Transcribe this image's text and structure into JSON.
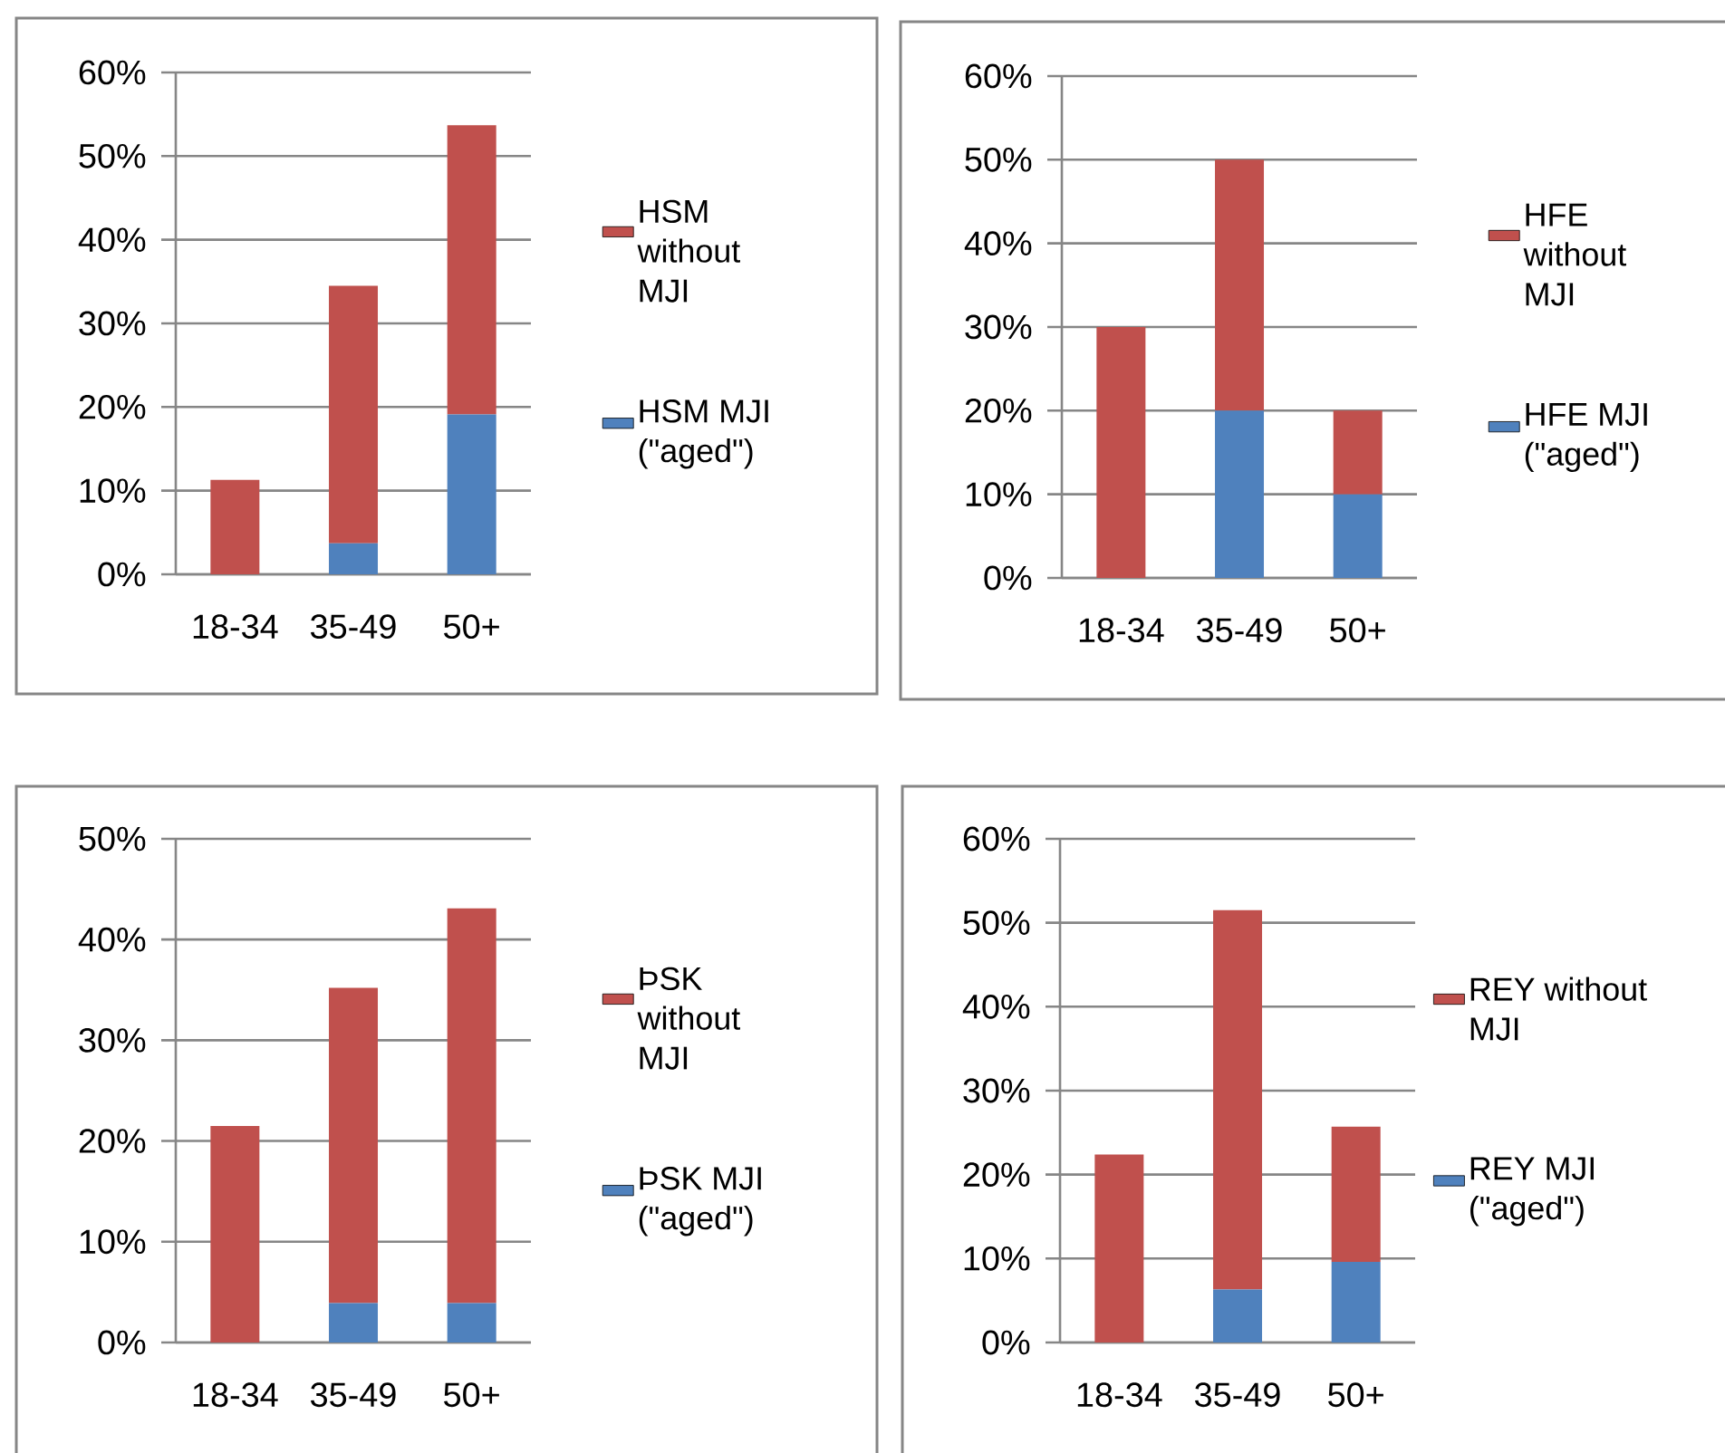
{
  "chart_data": [
    {
      "type": "bar",
      "stacked": true,
      "categories": [
        "18-34",
        "35-49",
        "50+"
      ],
      "series": [
        {
          "name": "HSM MJI (\"aged\")",
          "color": "#4f81bd",
          "values": [
            0,
            3.7,
            19.1
          ]
        },
        {
          "name": "HSM without MJI",
          "color": "#c0504d",
          "values": [
            11.3,
            30.8,
            34.6
          ]
        }
      ],
      "ylim": [
        0,
        60
      ],
      "yticks": [
        {
          "value": 0,
          "label": "0%"
        },
        {
          "value": 10,
          "label": "10%"
        },
        {
          "value": 20,
          "label": "20%"
        },
        {
          "value": 30,
          "label": "30%"
        },
        {
          "value": 40,
          "label": "40%"
        },
        {
          "value": 50,
          "label": "50%"
        },
        {
          "value": 60,
          "label": "60%"
        }
      ],
      "grid": "y",
      "legend": "right"
    },
    {
      "type": "bar",
      "stacked": true,
      "categories": [
        "18-34",
        "35-49",
        "50+"
      ],
      "series": [
        {
          "name": "HFE MJI (\"aged\")",
          "color": "#4f81bd",
          "values": [
            0,
            20,
            10
          ]
        },
        {
          "name": "HFE without MJI",
          "color": "#c0504d",
          "values": [
            30,
            30,
            10
          ]
        }
      ],
      "ylim": [
        0,
        60
      ],
      "yticks": [
        {
          "value": 0,
          "label": "0%"
        },
        {
          "value": 10,
          "label": "10%"
        },
        {
          "value": 20,
          "label": "20%"
        },
        {
          "value": 30,
          "label": "30%"
        },
        {
          "value": 40,
          "label": "40%"
        },
        {
          "value": 50,
          "label": "50%"
        },
        {
          "value": 60,
          "label": "60%"
        }
      ],
      "grid": "y",
      "legend": "right"
    },
    {
      "type": "bar",
      "stacked": true,
      "categories": [
        "18-34",
        "35-49",
        "50+"
      ],
      "series": [
        {
          "name": "ÞSK MJI (\"aged\")",
          "color": "#4f81bd",
          "values": [
            0,
            3.9,
            3.9
          ]
        },
        {
          "name": "ÞSK without MJI",
          "color": "#c0504d",
          "values": [
            21.5,
            31.3,
            39.2
          ]
        }
      ],
      "ylim": [
        0,
        50
      ],
      "yticks": [
        {
          "value": 0,
          "label": "0%"
        },
        {
          "value": 10,
          "label": "10%"
        },
        {
          "value": 20,
          "label": "20%"
        },
        {
          "value": 30,
          "label": "30%"
        },
        {
          "value": 40,
          "label": "40%"
        },
        {
          "value": 50,
          "label": "50%"
        }
      ],
      "grid": "y",
      "legend": "right"
    },
    {
      "type": "bar",
      "stacked": true,
      "categories": [
        "18-34",
        "35-49",
        "50+"
      ],
      "series": [
        {
          "name": "REY MJI (\"aged\")",
          "color": "#4f81bd",
          "values": [
            0,
            6.3,
            9.6
          ]
        },
        {
          "name": "REY without MJI",
          "color": "#c0504d",
          "values": [
            22.4,
            45.2,
            16.1
          ]
        }
      ],
      "ylim": [
        0,
        60
      ],
      "yticks": [
        {
          "value": 0,
          "label": "0%"
        },
        {
          "value": 10,
          "label": "10%"
        },
        {
          "value": 20,
          "label": "20%"
        },
        {
          "value": 30,
          "label": "30%"
        },
        {
          "value": 40,
          "label": "40%"
        },
        {
          "value": 50,
          "label": "50%"
        },
        {
          "value": 60,
          "label": "60%"
        }
      ],
      "grid": "y",
      "legend": "right"
    }
  ]
}
